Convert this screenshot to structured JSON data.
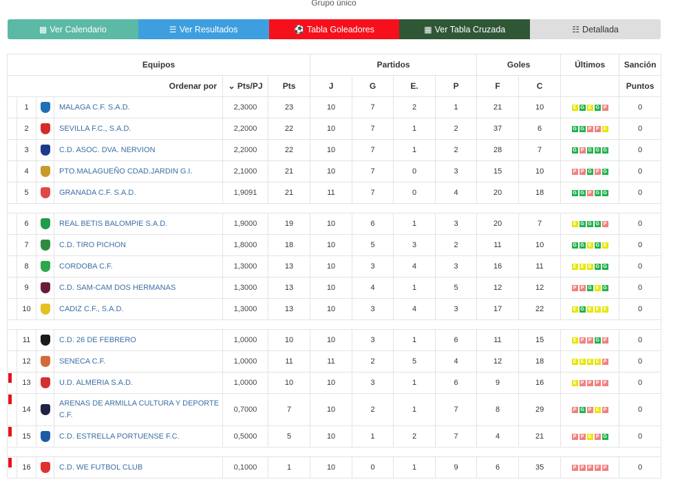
{
  "header": {
    "group_title": "Grupo único"
  },
  "tabs": [
    {
      "label": "Ver Calendario",
      "icon": "calendar-icon"
    },
    {
      "label": "Ver Resultados",
      "icon": "list-icon"
    },
    {
      "label": "Tabla Goleadores",
      "icon": "soccer-ball-icon"
    },
    {
      "label": "Ver Tabla Cruzada",
      "icon": "grid-table-icon"
    },
    {
      "label": "Detallada",
      "icon": "detail-list-icon"
    }
  ],
  "table": {
    "group_headers": {
      "equipos": "Equipos",
      "partidos": "Partidos",
      "goles": "Goles",
      "ultimos": "Últimos",
      "sancion": "Sanción"
    },
    "sort_headers": {
      "ordenar": "Ordenar por",
      "ptspj": "Pts/PJ",
      "pts": "Pts",
      "j": "J",
      "g": "G",
      "e": "E.",
      "p": "P",
      "f": "F",
      "c": "C",
      "puntos": "Puntos"
    },
    "colors": {
      "win": "#22b14c",
      "draw": "#e6e600",
      "loss": "#f08080",
      "relegation_mark": "#e8101b"
    },
    "rows": [
      {
        "pos": "1",
        "name": "MALAGA C.F. S.A.D.",
        "ptspj": "2,3000",
        "pts": "23",
        "j": "10",
        "g": "7",
        "e": "2",
        "p": "1",
        "f": "21",
        "c": "10",
        "last": [
          "E",
          "G",
          "E",
          "G",
          "P"
        ],
        "sancion": "0",
        "crest": "#1d6fb8"
      },
      {
        "pos": "2",
        "name": "SEVILLA F.C., S.A.D.",
        "ptspj": "2,2000",
        "pts": "22",
        "j": "10",
        "g": "7",
        "e": "1",
        "p": "2",
        "f": "37",
        "c": "6",
        "last": [
          "G",
          "G",
          "P",
          "P",
          "E"
        ],
        "sancion": "0",
        "crest": "#d42a2a"
      },
      {
        "pos": "3",
        "name": "C.D. ASOC. DVA. NERVION",
        "ptspj": "2,2000",
        "pts": "22",
        "j": "10",
        "g": "7",
        "e": "1",
        "p": "2",
        "f": "28",
        "c": "7",
        "last": [
          "G",
          "P",
          "G",
          "G",
          "G"
        ],
        "sancion": "0",
        "crest": "#1b3a8c"
      },
      {
        "pos": "4",
        "name": "PTO.MALAGUEÑO CDAD.JARDIN G.I.",
        "ptspj": "2,1000",
        "pts": "21",
        "j": "10",
        "g": "7",
        "e": "0",
        "p": "3",
        "f": "15",
        "c": "10",
        "last": [
          "P",
          "P",
          "G",
          "P",
          "G"
        ],
        "sancion": "0",
        "crest": "#c79a2a"
      },
      {
        "pos": "5",
        "name": "GRANADA C.F. S.A.D.",
        "ptspj": "1,9091",
        "pts": "21",
        "j": "11",
        "g": "7",
        "e": "0",
        "p": "4",
        "f": "20",
        "c": "18",
        "last": [
          "G",
          "G",
          "P",
          "G",
          "G"
        ],
        "sancion": "0",
        "crest": "#e04848"
      },
      {
        "pos": "6",
        "name": "REAL BETIS BALOMPIE S.A.D.",
        "ptspj": "1,9000",
        "pts": "19",
        "j": "10",
        "g": "6",
        "e": "1",
        "p": "3",
        "f": "20",
        "c": "7",
        "last": [
          "E",
          "G",
          "G",
          "G",
          "P"
        ],
        "sancion": "0",
        "crest": "#1f9b4a"
      },
      {
        "pos": "7",
        "name": "C.D. TIRO PICHON",
        "ptspj": "1,8000",
        "pts": "18",
        "j": "10",
        "g": "5",
        "e": "3",
        "p": "2",
        "f": "11",
        "c": "10",
        "last": [
          "G",
          "G",
          "E",
          "G",
          "E"
        ],
        "sancion": "0",
        "crest": "#2e8b3e"
      },
      {
        "pos": "8",
        "name": "CORDOBA C.F.",
        "ptspj": "1,3000",
        "pts": "13",
        "j": "10",
        "g": "3",
        "e": "4",
        "p": "3",
        "f": "16",
        "c": "11",
        "last": [
          "E",
          "E",
          "E",
          "G",
          "G"
        ],
        "sancion": "0",
        "crest": "#2aa84a"
      },
      {
        "pos": "9",
        "name": "C.D. SAM-CAM DOS HERMANAS",
        "ptspj": "1,3000",
        "pts": "13",
        "j": "10",
        "g": "4",
        "e": "1",
        "p": "5",
        "f": "12",
        "c": "12",
        "last": [
          "P",
          "P",
          "G",
          "E",
          "G"
        ],
        "sancion": "0",
        "crest": "#6a1a3a"
      },
      {
        "pos": "10",
        "name": "CADIZ C.F., S.A.D.",
        "ptspj": "1,3000",
        "pts": "13",
        "j": "10",
        "g": "3",
        "e": "4",
        "p": "3",
        "f": "17",
        "c": "22",
        "last": [
          "E",
          "G",
          "E",
          "E",
          "E"
        ],
        "sancion": "0",
        "crest": "#e6c020"
      },
      {
        "pos": "11",
        "name": "C.D. 26 DE FEBRERO",
        "ptspj": "1,0000",
        "pts": "10",
        "j": "10",
        "g": "3",
        "e": "1",
        "p": "6",
        "f": "11",
        "c": "15",
        "last": [
          "E",
          "P",
          "P",
          "G",
          "P"
        ],
        "sancion": "0",
        "crest": "#1a1a1a"
      },
      {
        "pos": "12",
        "name": "SENECA C.F.",
        "ptspj": "1,0000",
        "pts": "11",
        "j": "11",
        "g": "2",
        "e": "5",
        "p": "4",
        "f": "12",
        "c": "18",
        "last": [
          "E",
          "E",
          "E",
          "E",
          "P"
        ],
        "sancion": "0",
        "crest": "#d46a3a"
      },
      {
        "pos": "13",
        "name": "U.D. ALMERIA S.A.D.",
        "ptspj": "1,0000",
        "pts": "10",
        "j": "10",
        "g": "3",
        "e": "1",
        "p": "6",
        "f": "9",
        "c": "16",
        "last": [
          "E",
          "P",
          "P",
          "P",
          "P"
        ],
        "sancion": "0",
        "crest": "#d43030",
        "relegation": true
      },
      {
        "pos": "14",
        "name": "ARENAS DE ARMILLA CULTURA Y DEPORTE C.F.",
        "ptspj": "0,7000",
        "pts": "7",
        "j": "10",
        "g": "2",
        "e": "1",
        "p": "7",
        "f": "8",
        "c": "29",
        "last": [
          "P",
          "G",
          "P",
          "E",
          "P"
        ],
        "sancion": "0",
        "crest": "#222244",
        "relegation": true,
        "tall": true
      },
      {
        "pos": "15",
        "name": "C.D. ESTRELLA PORTUENSE F.C.",
        "ptspj": "0,5000",
        "pts": "5",
        "j": "10",
        "g": "1",
        "e": "2",
        "p": "7",
        "f": "4",
        "c": "21",
        "last": [
          "P",
          "P",
          "E",
          "P",
          "G"
        ],
        "sancion": "0",
        "crest": "#1f5aa8",
        "relegation": true
      },
      {
        "pos": "16",
        "name": "C.D. WE FUTBOL CLUB",
        "ptspj": "0,1000",
        "pts": "1",
        "j": "10",
        "g": "0",
        "e": "1",
        "p": "9",
        "f": "6",
        "c": "35",
        "last": [
          "P",
          "P",
          "P",
          "P",
          "P"
        ],
        "sancion": "0",
        "crest": "#e03030",
        "relegation": true
      }
    ]
  }
}
